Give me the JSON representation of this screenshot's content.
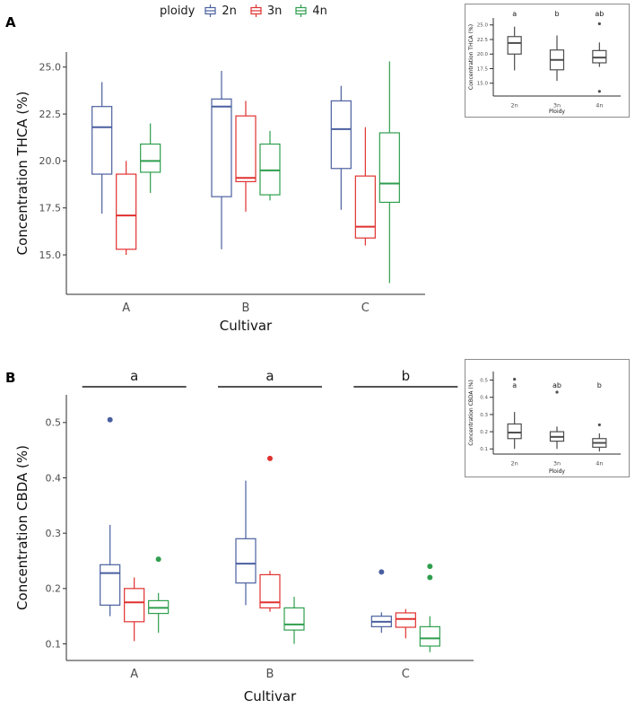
{
  "panels": {
    "a": {
      "label": "A"
    },
    "b": {
      "label": "B"
    }
  },
  "legend": {
    "title": "ploidy",
    "items": [
      {
        "label": "2n"
      },
      {
        "label": "3n"
      },
      {
        "label": "4n"
      }
    ]
  },
  "colors": {
    "2n": "#4a5f9f",
    "3n": "#e0312f",
    "4n": "#2f9e4e",
    "mono": "#4d4d4d"
  },
  "chart_data": [
    {
      "id": "panelA-main",
      "type": "boxplot",
      "title": "",
      "xlabel": "Cultivar",
      "ylabel": "Concentration THCA (%)",
      "ylim": [
        12.9,
        25.8
      ],
      "yticks": [
        15.0,
        17.5,
        20.0,
        22.5,
        25.0
      ],
      "ytick_labels": [
        "15.0",
        "17.5",
        "20.0",
        "22.5",
        "25.0"
      ],
      "categories": [
        "A",
        "B",
        "C"
      ],
      "series_keys": [
        "2n",
        "3n",
        "4n"
      ],
      "mono": false,
      "boxes": [
        {
          "category": "A",
          "series": "2n",
          "whisker_low": 17.2,
          "q1": 19.3,
          "median": 21.8,
          "q3": 22.9,
          "whisker_high": 24.2,
          "outliers": []
        },
        {
          "category": "A",
          "series": "3n",
          "whisker_low": 15.0,
          "q1": 15.3,
          "median": 17.1,
          "q3": 19.3,
          "whisker_high": 20.0,
          "outliers": []
        },
        {
          "category": "A",
          "series": "4n",
          "whisker_low": 18.3,
          "q1": 19.4,
          "median": 20.0,
          "q3": 20.9,
          "whisker_high": 22.0,
          "outliers": []
        },
        {
          "category": "B",
          "series": "2n",
          "whisker_low": 15.3,
          "q1": 18.1,
          "median": 22.9,
          "q3": 23.3,
          "whisker_high": 24.8,
          "outliers": []
        },
        {
          "category": "B",
          "series": "3n",
          "whisker_low": 17.3,
          "q1": 18.9,
          "median": 19.1,
          "q3": 22.4,
          "whisker_high": 23.2,
          "outliers": []
        },
        {
          "category": "B",
          "series": "4n",
          "whisker_low": 17.9,
          "q1": 18.2,
          "median": 19.5,
          "q3": 20.9,
          "whisker_high": 21.6,
          "outliers": []
        },
        {
          "category": "C",
          "series": "2n",
          "whisker_low": 17.4,
          "q1": 19.6,
          "median": 21.7,
          "q3": 23.2,
          "whisker_high": 24.0,
          "outliers": []
        },
        {
          "category": "C",
          "series": "3n",
          "whisker_low": 15.5,
          "q1": 15.9,
          "median": 16.5,
          "q3": 19.2,
          "whisker_high": 21.8,
          "outliers": []
        },
        {
          "category": "C",
          "series": "4n",
          "whisker_low": 13.5,
          "q1": 17.8,
          "median": 18.8,
          "q3": 21.5,
          "whisker_high": 25.3,
          "outliers": []
        }
      ],
      "annotations": []
    },
    {
      "id": "panelA-inset",
      "type": "boxplot",
      "title": "",
      "xlabel": "Ploidy",
      "ylabel": "Concentration THCA (%)",
      "ylim": [
        12.8,
        26.2
      ],
      "yticks": [
        15.0,
        17.5,
        20.0,
        22.5,
        25.0
      ],
      "ytick_labels": [
        "15.0",
        "17.5",
        "20.0",
        "22.5",
        "25.0"
      ],
      "categories": [
        "2n",
        "3n",
        "4n"
      ],
      "series_keys": [],
      "mono": true,
      "boxes": [
        {
          "category": "2n",
          "series": "2n",
          "whisker_low": 17.2,
          "q1": 20.0,
          "median": 21.9,
          "q3": 23.0,
          "whisker_high": 24.7,
          "outliers": []
        },
        {
          "category": "3n",
          "series": "3n",
          "whisker_low": 15.4,
          "q1": 17.3,
          "median": 19.0,
          "q3": 20.7,
          "whisker_high": 23.2,
          "outliers": []
        },
        {
          "category": "4n",
          "series": "4n",
          "whisker_low": 17.8,
          "q1": 18.5,
          "median": 19.4,
          "q3": 20.6,
          "whisker_high": 22.0,
          "outliers": [
            25.2,
            13.6
          ]
        }
      ],
      "annotations": [
        {
          "category": "2n",
          "label": "a"
        },
        {
          "category": "3n",
          "label": "b"
        },
        {
          "category": "4n",
          "label": "ab"
        }
      ]
    },
    {
      "id": "panelB-main",
      "type": "boxplot",
      "title": "",
      "xlabel": "Cultivar",
      "ylabel": "Concentration CBDA (%)",
      "ylim": [
        0.07,
        0.55
      ],
      "yticks": [
        0.1,
        0.2,
        0.3,
        0.4,
        0.5
      ],
      "ytick_labels": [
        "0.1",
        "0.2",
        "0.3",
        "0.4",
        "0.5"
      ],
      "categories": [
        "A",
        "B",
        "C"
      ],
      "series_keys": [
        "2n",
        "3n",
        "4n"
      ],
      "mono": false,
      "boxes": [
        {
          "category": "A",
          "series": "2n",
          "whisker_low": 0.15,
          "q1": 0.17,
          "median": 0.228,
          "q3": 0.243,
          "whisker_high": 0.315,
          "outliers": [
            0.505
          ]
        },
        {
          "category": "A",
          "series": "3n",
          "whisker_low": 0.105,
          "q1": 0.14,
          "median": 0.175,
          "q3": 0.2,
          "whisker_high": 0.22,
          "outliers": []
        },
        {
          "category": "A",
          "series": "4n",
          "whisker_low": 0.12,
          "q1": 0.155,
          "median": 0.165,
          "q3": 0.178,
          "whisker_high": 0.192,
          "outliers": [
            0.253
          ]
        },
        {
          "category": "B",
          "series": "2n",
          "whisker_low": 0.17,
          "q1": 0.21,
          "median": 0.245,
          "q3": 0.29,
          "whisker_high": 0.395,
          "outliers": []
        },
        {
          "category": "B",
          "series": "3n",
          "whisker_low": 0.158,
          "q1": 0.165,
          "median": 0.175,
          "q3": 0.225,
          "whisker_high": 0.232,
          "outliers": [
            0.435
          ]
        },
        {
          "category": "B",
          "series": "4n",
          "whisker_low": 0.1,
          "q1": 0.125,
          "median": 0.135,
          "q3": 0.165,
          "whisker_high": 0.185,
          "outliers": []
        },
        {
          "category": "C",
          "series": "2n",
          "whisker_low": 0.12,
          "q1": 0.131,
          "median": 0.14,
          "q3": 0.15,
          "whisker_high": 0.157,
          "outliers": [
            0.23
          ]
        },
        {
          "category": "C",
          "series": "3n",
          "whisker_low": 0.11,
          "q1": 0.13,
          "median": 0.145,
          "q3": 0.156,
          "whisker_high": 0.163,
          "outliers": []
        },
        {
          "category": "C",
          "series": "4n",
          "whisker_low": 0.085,
          "q1": 0.096,
          "median": 0.11,
          "q3": 0.131,
          "whisker_high": 0.15,
          "outliers": [
            0.22,
            0.24
          ]
        }
      ],
      "annotations": [
        {
          "category": "A",
          "label": "a"
        },
        {
          "category": "B",
          "label": "a"
        },
        {
          "category": "C",
          "label": "b"
        }
      ]
    },
    {
      "id": "panelB-inset",
      "type": "boxplot",
      "title": "",
      "xlabel": "Ploidy",
      "ylabel": "Concentration CBDA (%)",
      "ylim": [
        0.07,
        0.55
      ],
      "yticks": [
        0.1,
        0.2,
        0.3,
        0.4,
        0.5
      ],
      "ytick_labels": [
        "0.1",
        "0.2",
        "0.3",
        "0.4",
        "0.5"
      ],
      "categories": [
        "2n",
        "3n",
        "4n"
      ],
      "series_keys": [],
      "mono": true,
      "boxes": [
        {
          "category": "2n",
          "series": "2n",
          "whisker_low": 0.1,
          "q1": 0.16,
          "median": 0.195,
          "q3": 0.245,
          "whisker_high": 0.315,
          "outliers": [
            0.505
          ]
        },
        {
          "category": "3n",
          "series": "3n",
          "whisker_low": 0.1,
          "q1": 0.145,
          "median": 0.17,
          "q3": 0.2,
          "whisker_high": 0.23,
          "outliers": [
            0.43
          ]
        },
        {
          "category": "4n",
          "series": "4n",
          "whisker_low": 0.085,
          "q1": 0.11,
          "median": 0.135,
          "q3": 0.16,
          "whisker_high": 0.19,
          "outliers": [
            0.24
          ]
        }
      ],
      "annotations": [
        {
          "category": "2n",
          "label": "a"
        },
        {
          "category": "3n",
          "label": "ab"
        },
        {
          "category": "4n",
          "label": "b"
        }
      ]
    }
  ]
}
